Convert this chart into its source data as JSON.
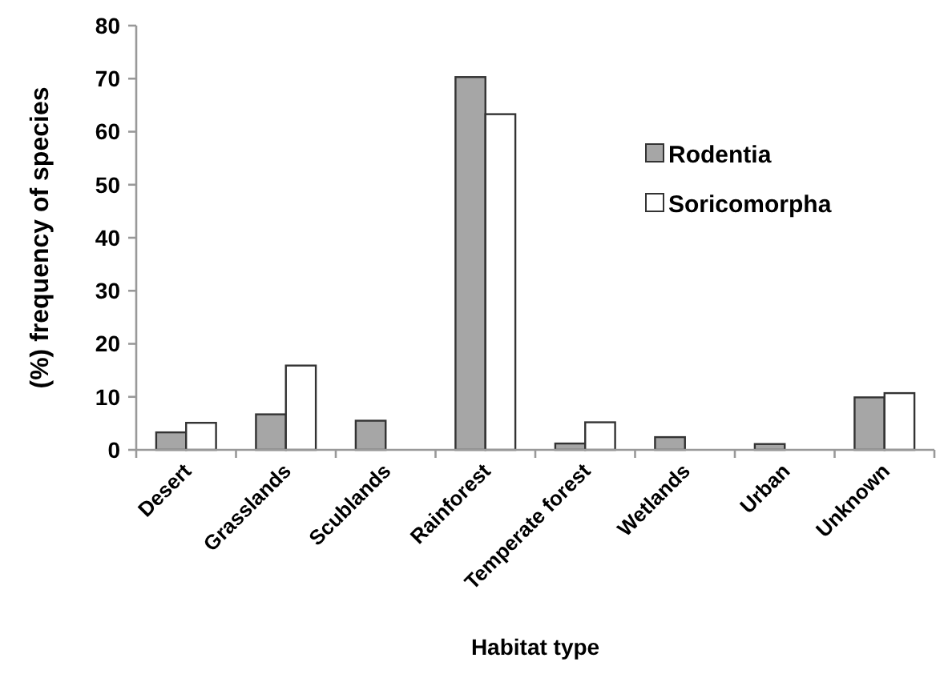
{
  "chart_data": {
    "type": "bar",
    "xlabel": "Habitat type",
    "ylabel": "(%) frequency of species",
    "categories": [
      "Desert",
      "Grasslands",
      "Scublands",
      "Rainforest",
      "Temperate forest",
      "Wetlands",
      "Urban",
      "Unknown"
    ],
    "series": [
      {
        "name": "Rodentia",
        "color": "#a6a6a6",
        "values": [
          3.3,
          6.7,
          5.5,
          70.3,
          1.2,
          2.4,
          1.1,
          9.9
        ]
      },
      {
        "name": "Soricomorpha",
        "color": "#ffffff",
        "values": [
          5.1,
          15.9,
          null,
          63.3,
          5.2,
          null,
          null,
          10.7
        ]
      }
    ],
    "ylim": [
      0,
      80
    ],
    "yticks": [
      0,
      10,
      20,
      30,
      40,
      50,
      60,
      70,
      80
    ],
    "grid": false,
    "legend": "right"
  }
}
